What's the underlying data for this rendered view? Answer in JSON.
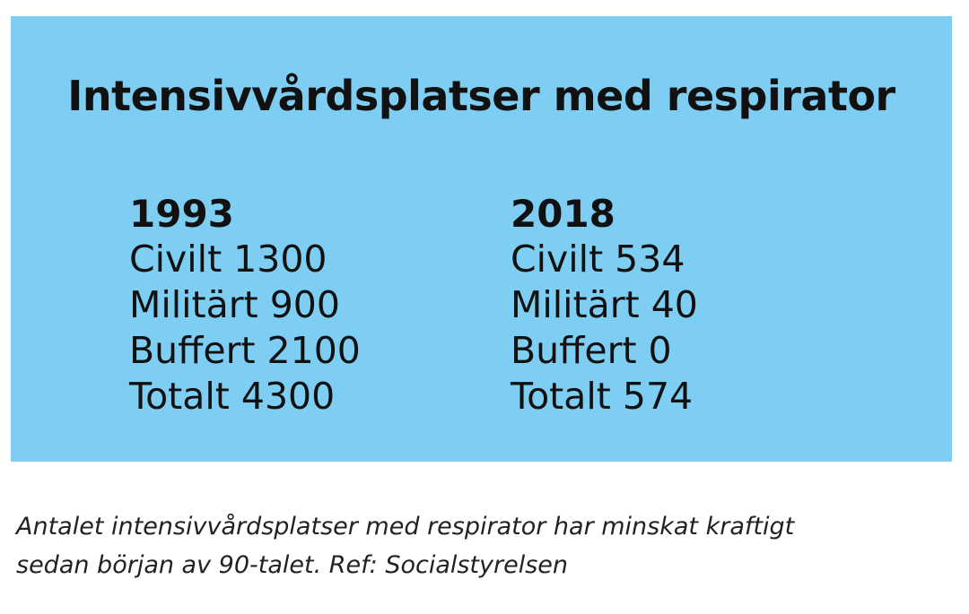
{
  "title": "Intensivvårdsplatser med respirator",
  "columns": [
    {
      "year": "1993",
      "rows": [
        "Civilt 1300",
        "Militärt 900",
        "Buffert 2100",
        "Totalt 4300"
      ]
    },
    {
      "year": "2018",
      "rows": [
        "Civilt 534",
        "Militärt 40",
        "Buffert 0",
        "Totalt 574"
      ]
    }
  ],
  "caption": {
    "line1": "Antalet intensivvårdsplatser med respirator har minskat kraftigt",
    "line2": "sedan början av 90-talet.  Ref: Socialstyrelsen"
  },
  "colors": {
    "panel_background": "#7ecef3",
    "text": "#111111"
  }
}
